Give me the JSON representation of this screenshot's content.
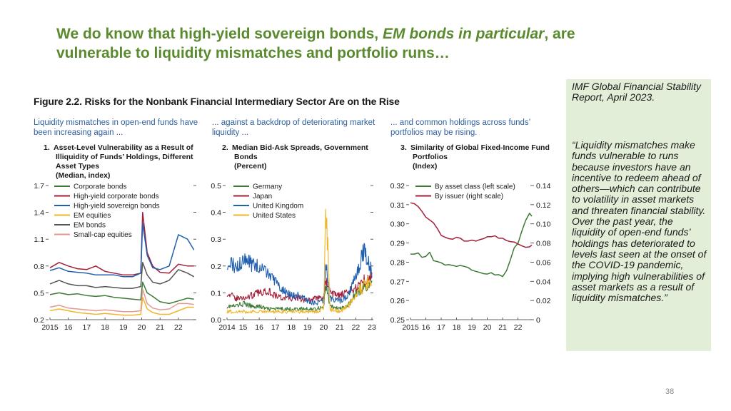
{
  "slide": {
    "title_part1": "We do know that high-yield sovereign bonds, ",
    "title_emph": "EM bonds in particular",
    "title_part2": ", are vulnerable to liquidity mismatches and portfolio runs…",
    "page_number": "38"
  },
  "figure": {
    "title": "Figure 2.2. Risks for the Nonbank Financial Intermediary Sector Are on the Rise"
  },
  "sidebar": {
    "source": "IMF Global Financial Stability Report, April 2023.",
    "quote": "“Liquidity mismatches make funds vulnerable to runs because investors have an incentive to redeem ahead of others—which can contribute to volatility in asset markets and threaten financial stability. Over the past year, the liquidity of open-end funds’ holdings has deteriorated to levels last seen at the onset of the COVID-19 pandemic, implying high vulnerabilities of asset markets as a result of liquidity mismatches.”"
  },
  "colors": {
    "title_green": "#5a8a2e",
    "subtitle_blue": "#2e5fa0",
    "sidebar_bg": "#e3eed8",
    "green": "#3d7a35",
    "crimson": "#a3203a",
    "blue": "#1f5fae",
    "gold": "#f0b62a",
    "darkgray": "#555555",
    "pink": "#e39a8e"
  },
  "chart_data": [
    {
      "type": "line",
      "subtitle": "Liquidity mismatches in open-end funds have been increasing again ...",
      "number": "1.",
      "title_lines": [
        "Asset-Level Vulnerability as a Result of",
        "Illiquidity of Funds’ Holdings, Different",
        "Asset Types",
        "(Median, index)"
      ],
      "ylim": [
        0.2,
        1.7
      ],
      "yticks": [
        "0.2",
        "0.5",
        "0.8",
        "1.1",
        "1.4",
        "1.7"
      ],
      "xticks": [
        "2015",
        "16",
        "17",
        "18",
        "19",
        "20",
        "21",
        "22"
      ],
      "legend_position": "top-left",
      "series": [
        {
          "name": "Corporate bonds",
          "color": "#3d7a35",
          "x": [
            2015,
            2015.5,
            2016,
            2016.5,
            2017,
            2017.5,
            2018,
            2018.5,
            2019,
            2019.5,
            2019.95,
            2020.05,
            2020.3,
            2020.6,
            2021,
            2021.5,
            2022,
            2022.5,
            2022.85
          ],
          "values": [
            0.48,
            0.5,
            0.48,
            0.49,
            0.47,
            0.46,
            0.47,
            0.45,
            0.44,
            0.43,
            0.42,
            0.62,
            0.5,
            0.46,
            0.4,
            0.38,
            0.41,
            0.44,
            0.43
          ]
        },
        {
          "name": "High-yield corporate bonds",
          "color": "#a3203a",
          "x": [
            2015,
            2015.5,
            2016,
            2016.5,
            2017,
            2017.5,
            2018,
            2018.5,
            2019,
            2019.5,
            2019.95,
            2020.05,
            2020.3,
            2020.6,
            2021,
            2021.5,
            2022,
            2022.5,
            2022.85
          ],
          "values": [
            0.78,
            0.84,
            0.8,
            0.77,
            0.76,
            0.8,
            0.74,
            0.72,
            0.7,
            0.7,
            0.72,
            1.4,
            0.95,
            0.8,
            0.73,
            0.72,
            0.82,
            0.8,
            0.8
          ]
        },
        {
          "name": "High-yield sovereign bonds",
          "color": "#1f5fae",
          "x": [
            2015,
            2015.5,
            2016,
            2016.5,
            2017,
            2017.5,
            2018,
            2018.5,
            2019,
            2019.5,
            2019.95,
            2020.05,
            2020.3,
            2020.6,
            2021,
            2021.5,
            2022,
            2022.5,
            2022.85
          ],
          "values": [
            0.75,
            0.78,
            0.74,
            0.73,
            0.72,
            0.7,
            0.7,
            0.7,
            0.68,
            0.68,
            0.72,
            1.28,
            0.92,
            0.78,
            0.76,
            0.8,
            1.15,
            1.1,
            0.98
          ]
        },
        {
          "name": "EM equities",
          "color": "#f0b62a",
          "x": [
            2015,
            2015.5,
            2016,
            2016.5,
            2017,
            2017.5,
            2018,
            2018.5,
            2019,
            2019.5,
            2019.95,
            2020.05,
            2020.3,
            2020.6,
            2021,
            2021.5,
            2022,
            2022.5,
            2022.85
          ],
          "values": [
            0.3,
            0.32,
            0.3,
            0.28,
            0.27,
            0.26,
            0.27,
            0.26,
            0.25,
            0.25,
            0.26,
            0.45,
            0.32,
            0.28,
            0.26,
            0.26,
            0.3,
            0.34,
            0.34
          ]
        },
        {
          "name": "EM bonds",
          "color": "#555555",
          "x": [
            2015,
            2015.5,
            2016,
            2016.5,
            2017,
            2017.5,
            2018,
            2018.5,
            2019,
            2019.5,
            2019.95,
            2020.05,
            2020.3,
            2020.6,
            2021,
            2021.5,
            2022,
            2022.5,
            2022.85
          ],
          "values": [
            0.6,
            0.64,
            0.6,
            0.58,
            0.58,
            0.56,
            0.57,
            0.56,
            0.55,
            0.55,
            0.57,
            0.84,
            0.7,
            0.62,
            0.6,
            0.64,
            0.76,
            0.72,
            0.68
          ]
        },
        {
          "name": "Small-cap equities",
          "color": "#e39a8e",
          "x": [
            2015,
            2015.5,
            2016,
            2016.5,
            2017,
            2017.5,
            2018,
            2018.5,
            2019,
            2019.5,
            2019.95,
            2020.05,
            2020.3,
            2020.6,
            2021,
            2021.5,
            2022,
            2022.5,
            2022.85
          ],
          "values": [
            0.34,
            0.36,
            0.33,
            0.32,
            0.31,
            0.3,
            0.31,
            0.3,
            0.29,
            0.29,
            0.3,
            0.54,
            0.38,
            0.33,
            0.31,
            0.32,
            0.38,
            0.38,
            0.37
          ]
        }
      ]
    },
    {
      "type": "line",
      "subtitle": "... against a backdrop of deteriorating market liquidity ...",
      "number": "2.",
      "title_lines": [
        "Median Bid-Ask Spreads, Government",
        "Bonds",
        "(Percent)"
      ],
      "ylim": [
        0,
        0.5
      ],
      "yticks": [
        "0.0",
        "0.1",
        "0.2",
        "0.3",
        "0.4",
        "0.5"
      ],
      "xticks": [
        "2014",
        "15",
        "16",
        "17",
        "18",
        "19",
        "20",
        "21",
        "22",
        "23"
      ],
      "legend_position": "top-left",
      "series": [
        {
          "name": "Germany",
          "color": "#3d7a35",
          "x": [
            2014,
            2014.5,
            2015,
            2015.5,
            2016,
            2016.5,
            2017,
            2017.5,
            2018,
            2018.5,
            2019,
            2019.5,
            2020,
            2020.15,
            2020.4,
            2021,
            2021.5,
            2022,
            2022.5,
            2023
          ],
          "values": [
            0.05,
            0.05,
            0.06,
            0.05,
            0.05,
            0.04,
            0.04,
            0.04,
            0.04,
            0.04,
            0.04,
            0.04,
            0.05,
            0.13,
            0.05,
            0.04,
            0.05,
            0.1,
            0.12,
            0.14
          ]
        },
        {
          "name": "Japan",
          "color": "#a3203a",
          "x": [
            2014,
            2014.5,
            2015,
            2015.5,
            2016,
            2016.5,
            2017,
            2017.5,
            2018,
            2018.5,
            2019,
            2019.5,
            2020,
            2020.15,
            2020.4,
            2021,
            2021.5,
            2022,
            2022.5,
            2023
          ],
          "values": [
            0.1,
            0.08,
            0.08,
            0.09,
            0.1,
            0.11,
            0.09,
            0.08,
            0.08,
            0.08,
            0.07,
            0.08,
            0.08,
            0.15,
            0.1,
            0.09,
            0.1,
            0.12,
            0.15,
            0.16
          ]
        },
        {
          "name": "United Kingdom",
          "color": "#1f5fae",
          "x": [
            2014,
            2014.5,
            2015,
            2015.5,
            2016,
            2016.5,
            2017,
            2017.5,
            2018,
            2018.5,
            2019,
            2019.5,
            2020,
            2020.15,
            2020.4,
            2021,
            2021.5,
            2022,
            2022.5,
            2023
          ],
          "values": [
            0.22,
            0.2,
            0.22,
            0.21,
            0.2,
            0.17,
            0.14,
            0.11,
            0.09,
            0.09,
            0.07,
            0.06,
            0.07,
            0.22,
            0.08,
            0.07,
            0.09,
            0.16,
            0.26,
            0.18
          ]
        },
        {
          "name": "United States",
          "color": "#f0b62a",
          "x": [
            2014,
            2014.5,
            2015,
            2015.5,
            2016,
            2016.5,
            2017,
            2017.5,
            2018,
            2018.5,
            2019,
            2019.5,
            2020,
            2020.15,
            2020.4,
            2021,
            2021.5,
            2022,
            2022.5,
            2023
          ],
          "values": [
            0.03,
            0.03,
            0.03,
            0.03,
            0.03,
            0.03,
            0.03,
            0.03,
            0.03,
            0.03,
            0.03,
            0.03,
            0.04,
            0.45,
            0.04,
            0.03,
            0.05,
            0.09,
            0.13,
            0.14
          ]
        }
      ]
    },
    {
      "type": "line",
      "subtitle": "... and common holdings across funds’ portfolios may be rising.",
      "number": "3.",
      "title_lines": [
        "Similarity of Global Fixed-Income Fund",
        "Portfolios",
        "(Index)"
      ],
      "ylim_left": [
        0.25,
        0.32
      ],
      "ylim_right": [
        0,
        0.14
      ],
      "yticks_left": [
        "0.25",
        "0.26",
        "0.27",
        "0.28",
        "0.29",
        "0.30",
        "0.31",
        "0.32"
      ],
      "yticks_right": [
        "0",
        "0.02",
        "0.04",
        "0.06",
        "0.08",
        "0.10",
        "0.12",
        "0.14"
      ],
      "xticks": [
        "2015",
        "16",
        "17",
        "18",
        "19",
        "20",
        "21",
        "22"
      ],
      "legend_position": "top-left",
      "series": [
        {
          "name": "By asset class (left scale)",
          "color": "#3d7a35",
          "axis": "left",
          "x": [
            2015,
            2015.25,
            2015.5,
            2015.75,
            2016,
            2016.25,
            2016.5,
            2016.75,
            2017,
            2017.25,
            2017.5,
            2017.75,
            2018,
            2018.25,
            2018.5,
            2018.75,
            2019,
            2019.25,
            2019.5,
            2019.75,
            2020,
            2020.25,
            2020.5,
            2020.75,
            2021,
            2021.25,
            2021.5,
            2021.75,
            2022,
            2022.25,
            2022.5,
            2022.75,
            2022.9
          ],
          "values": [
            0.2842,
            0.2842,
            0.2848,
            0.2825,
            0.283,
            0.2852,
            0.2808,
            0.2803,
            0.2797,
            0.2785,
            0.2787,
            0.2783,
            0.2778,
            0.2783,
            0.2778,
            0.2772,
            0.2758,
            0.2752,
            0.2747,
            0.274,
            0.2738,
            0.2745,
            0.2733,
            0.2735,
            0.2725,
            0.2755,
            0.2812,
            0.2875,
            0.2898,
            0.2962,
            0.3018,
            0.3055,
            0.304
          ]
        },
        {
          "name": "By issuer (right scale)",
          "color": "#a3203a",
          "axis": "right",
          "x": [
            2015,
            2015.25,
            2015.5,
            2015.75,
            2016,
            2016.25,
            2016.5,
            2016.75,
            2017,
            2017.25,
            2017.5,
            2017.75,
            2018,
            2018.25,
            2018.5,
            2018.75,
            2019,
            2019.25,
            2019.5,
            2019.75,
            2020,
            2020.25,
            2020.5,
            2020.75,
            2021,
            2021.25,
            2021.5,
            2021.75,
            2022,
            2022.25,
            2022.5,
            2022.75,
            2022.9
          ],
          "values": [
            0.122,
            0.121,
            0.118,
            0.113,
            0.107,
            0.104,
            0.101,
            0.095,
            0.088,
            0.086,
            0.0845,
            0.084,
            0.086,
            0.085,
            0.082,
            0.082,
            0.083,
            0.082,
            0.0835,
            0.0845,
            0.0865,
            0.0865,
            0.0875,
            0.085,
            0.085,
            0.0825,
            0.0815,
            0.081,
            0.079,
            0.077,
            0.0755,
            0.076,
            0.078
          ]
        }
      ]
    }
  ]
}
